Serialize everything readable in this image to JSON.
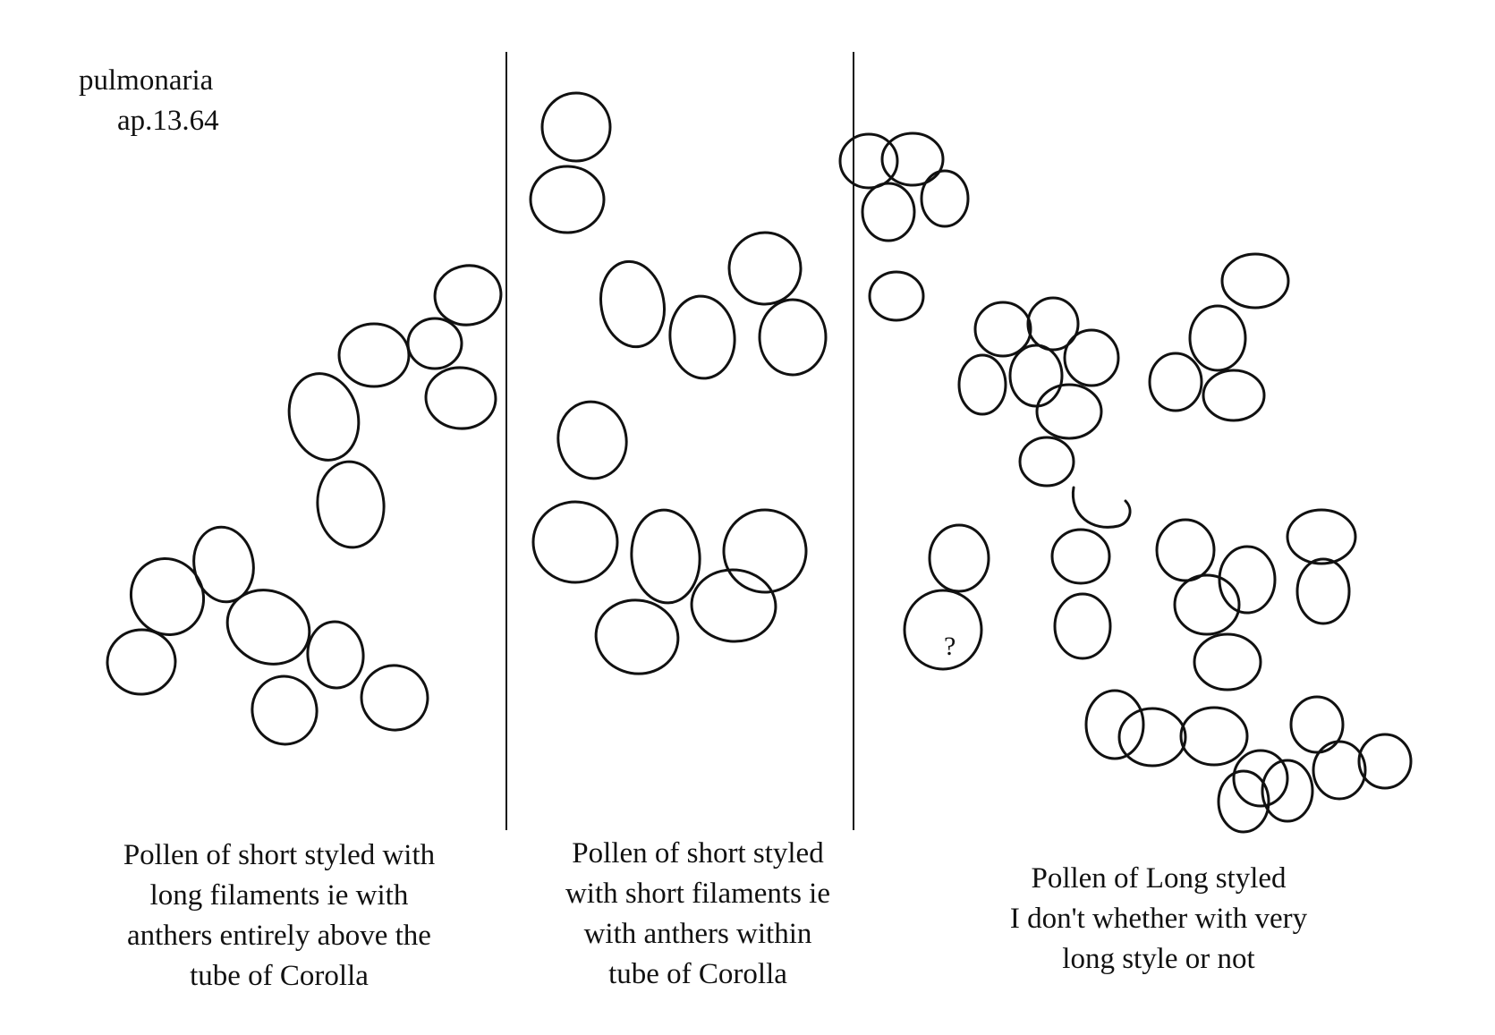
{
  "title": {
    "line1": "pulmonaria",
    "line2": "ap.13.64"
  },
  "panels": [
    {
      "caption": [
        "Pollen of short styled with",
        "long filaments  ie with",
        "anthers entirely above the",
        "tube of Corolla"
      ]
    },
    {
      "caption": [
        "Pollen of short styled",
        "with short filaments  ie",
        "with anthers within",
        "tube of Corolla"
      ]
    },
    {
      "caption": [
        "Pollen of Long styled",
        "I don't whether with very",
        "long style or not"
      ]
    }
  ],
  "question_mark": "?",
  "colors": {
    "ink": "#111111",
    "paper": "#ffffff"
  }
}
